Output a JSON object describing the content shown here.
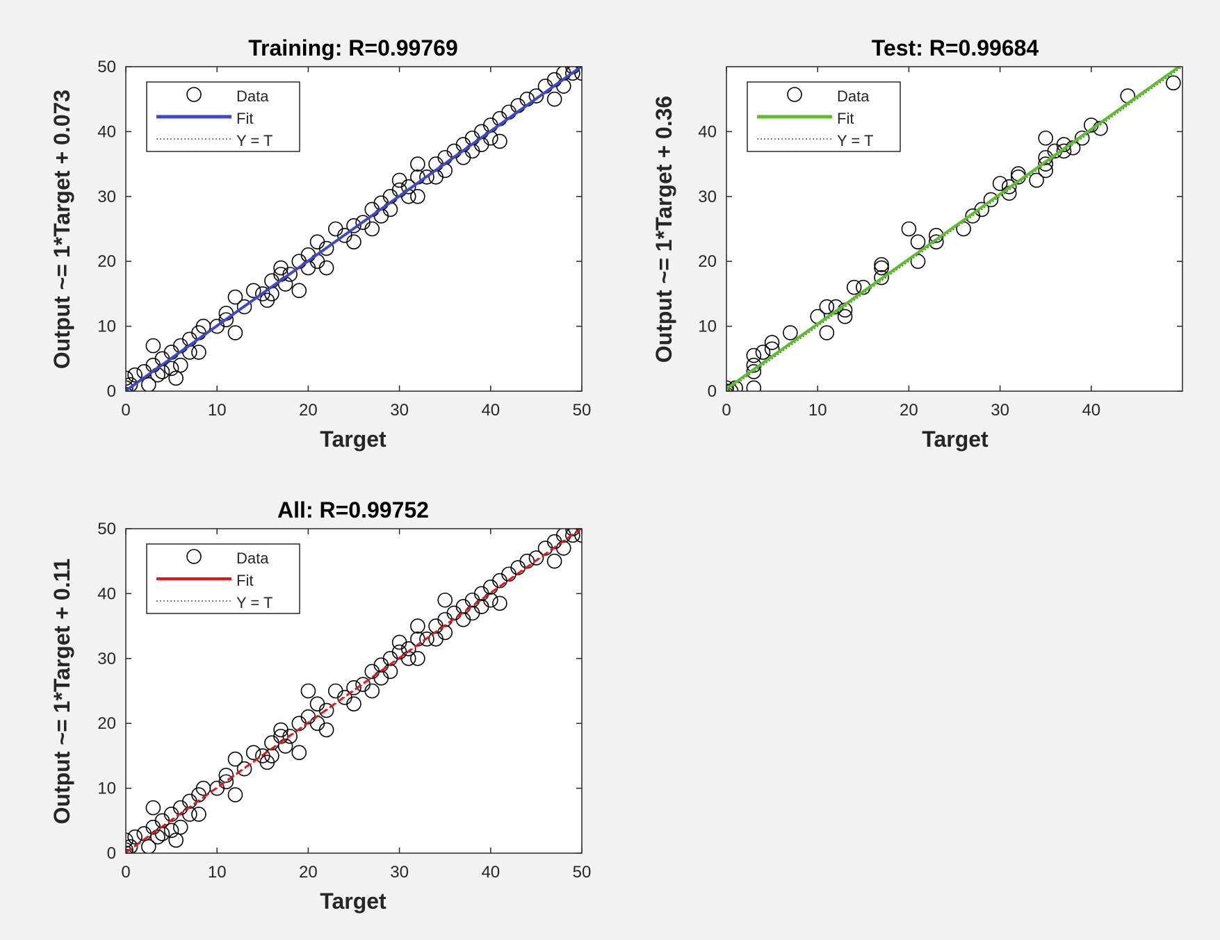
{
  "chart_data": [
    {
      "type": "scatter",
      "id": "training",
      "title": "Training: R=0.99769",
      "xlabel": "Target",
      "ylabel": "Output ~= 1*Target + 0.073",
      "xlim": [
        0,
        50
      ],
      "ylim": [
        0,
        50
      ],
      "xticks": [
        0,
        10,
        20,
        30,
        40,
        50
      ],
      "yticks": [
        0,
        10,
        20,
        30,
        40,
        50
      ],
      "fit": {
        "slope": 1,
        "intercept": 0.073,
        "color": "#3f48cc"
      },
      "legend": {
        "data": "Data",
        "fit": "Fit",
        "identity": "Y = T"
      },
      "series": [
        {
          "name": "Data",
          "points": [
            [
              0,
              -0.5
            ],
            [
              0,
              0.5
            ],
            [
              0,
              2
            ],
            [
              0.5,
              1
            ],
            [
              1,
              2.5
            ],
            [
              2,
              3
            ],
            [
              2.5,
              1
            ],
            [
              3,
              4
            ],
            [
              3,
              7
            ],
            [
              3.5,
              2.5
            ],
            [
              4,
              5
            ],
            [
              4,
              3
            ],
            [
              5,
              6
            ],
            [
              5,
              3.5
            ],
            [
              5.5,
              2
            ],
            [
              6,
              7
            ],
            [
              6,
              4
            ],
            [
              7,
              8
            ],
            [
              7,
              6
            ],
            [
              8,
              9
            ],
            [
              8,
              6
            ],
            [
              8.5,
              10
            ],
            [
              10,
              10
            ],
            [
              11,
              12
            ],
            [
              11,
              11
            ],
            [
              12,
              14.5
            ],
            [
              12,
              9
            ],
            [
              13,
              13
            ],
            [
              14,
              15.5
            ],
            [
              15,
              15
            ],
            [
              15.5,
              14
            ],
            [
              16,
              17
            ],
            [
              16,
              15
            ],
            [
              17,
              18
            ],
            [
              17,
              19
            ],
            [
              17.5,
              16.5
            ],
            [
              18,
              18
            ],
            [
              19,
              20
            ],
            [
              19,
              15.5
            ],
            [
              20,
              21
            ],
            [
              20,
              19
            ],
            [
              21,
              23
            ],
            [
              21,
              20
            ],
            [
              22,
              22
            ],
            [
              22,
              19
            ],
            [
              23,
              25
            ],
            [
              24,
              24
            ],
            [
              25,
              25.5
            ],
            [
              25,
              23
            ],
            [
              26,
              26
            ],
            [
              27,
              28
            ],
            [
              27,
              25
            ],
            [
              28,
              29
            ],
            [
              28,
              27
            ],
            [
              29,
              30
            ],
            [
              29,
              28
            ],
            [
              30,
              31
            ],
            [
              30,
              32.5
            ],
            [
              31,
              30
            ],
            [
              31,
              31.5
            ],
            [
              32,
              33
            ],
            [
              32,
              35
            ],
            [
              32,
              30
            ],
            [
              33,
              33
            ],
            [
              34,
              35
            ],
            [
              34,
              33
            ],
            [
              35,
              36
            ],
            [
              35,
              34
            ],
            [
              36,
              37
            ],
            [
              37,
              38
            ],
            [
              37,
              36
            ],
            [
              38,
              39
            ],
            [
              38,
              37
            ],
            [
              39,
              40
            ],
            [
              39,
              38
            ],
            [
              40,
              41
            ],
            [
              40,
              39
            ],
            [
              41,
              42
            ],
            [
              41,
              38.5
            ],
            [
              42,
              43
            ],
            [
              43,
              44
            ],
            [
              44,
              45
            ],
            [
              45,
              45.5
            ],
            [
              46,
              47
            ],
            [
              47,
              48
            ],
            [
              47,
              45
            ],
            [
              48,
              49
            ],
            [
              48,
              47
            ],
            [
              49,
              49
            ],
            [
              49,
              50
            ],
            [
              50,
              49
            ]
          ]
        }
      ]
    },
    {
      "type": "scatter",
      "id": "test",
      "title": "Test: R=0.99684",
      "xlabel": "Target",
      "ylabel": "Output ~= 1*Target + 0.36",
      "xlim": [
        0,
        50
      ],
      "ylim": [
        0,
        50
      ],
      "xticks": [
        0,
        10,
        20,
        30,
        40
      ],
      "yticks": [
        0,
        10,
        20,
        30,
        40
      ],
      "fit": {
        "slope": 1,
        "intercept": 0.36,
        "color": "#5cbf2a"
      },
      "legend": {
        "data": "Data",
        "fit": "Fit",
        "identity": "Y = T"
      },
      "series": [
        {
          "name": "Data",
          "points": [
            [
              0,
              0
            ],
            [
              0,
              -0.5
            ],
            [
              0,
              0.5
            ],
            [
              0.5,
              0
            ],
            [
              1,
              0.5
            ],
            [
              3,
              0.5
            ],
            [
              3,
              3
            ],
            [
              3,
              4
            ],
            [
              3,
              5.5
            ],
            [
              4,
              6
            ],
            [
              5,
              6.5
            ],
            [
              5,
              7.5
            ],
            [
              7,
              9
            ],
            [
              10,
              11.5
            ],
            [
              11,
              9
            ],
            [
              11,
              13
            ],
            [
              12,
              13
            ],
            [
              13,
              11.5
            ],
            [
              13,
              12.5
            ],
            [
              14,
              16
            ],
            [
              15,
              16
            ],
            [
              17,
              17.5
            ],
            [
              17,
              19
            ],
            [
              17,
              19.5
            ],
            [
              20,
              25
            ],
            [
              21,
              20
            ],
            [
              21,
              23
            ],
            [
              23,
              23
            ],
            [
              23,
              24
            ],
            [
              26,
              25
            ],
            [
              27,
              27
            ],
            [
              28,
              28
            ],
            [
              29,
              29.5
            ],
            [
              30,
              32
            ],
            [
              31,
              30.5
            ],
            [
              31,
              31.5
            ],
            [
              32,
              33
            ],
            [
              32,
              33.5
            ],
            [
              34,
              32.5
            ],
            [
              35,
              34
            ],
            [
              35,
              35
            ],
            [
              35,
              36
            ],
            [
              35,
              39
            ],
            [
              36,
              37
            ],
            [
              37,
              37
            ],
            [
              37,
              38
            ],
            [
              38,
              37.5
            ],
            [
              39,
              39
            ],
            [
              40,
              41
            ],
            [
              41,
              40.5
            ],
            [
              44,
              45.5
            ],
            [
              49,
              47.5
            ]
          ]
        }
      ]
    },
    {
      "type": "scatter",
      "id": "all",
      "title": "All: R=0.99752",
      "xlabel": "Target",
      "ylabel": "Output ~= 1*Target + 0.11",
      "xlim": [
        0,
        50
      ],
      "ylim": [
        0,
        50
      ],
      "xticks": [
        0,
        10,
        20,
        30,
        40,
        50
      ],
      "yticks": [
        0,
        10,
        20,
        30,
        40,
        50
      ],
      "fit": {
        "slope": 1,
        "intercept": 0.11,
        "color": "#e8141b"
      },
      "legend": {
        "data": "Data",
        "fit": "Fit",
        "identity": "Y = T"
      },
      "series": [
        {
          "name": "Data",
          "points": [
            [
              0,
              -0.5
            ],
            [
              0,
              0
            ],
            [
              0,
              0.5
            ],
            [
              0,
              2
            ],
            [
              0.5,
              1
            ],
            [
              1,
              2.5
            ],
            [
              2,
              3
            ],
            [
              2.5,
              1
            ],
            [
              3,
              4
            ],
            [
              3,
              7
            ],
            [
              3.5,
              2.5
            ],
            [
              4,
              5
            ],
            [
              4,
              3
            ],
            [
              5,
              6
            ],
            [
              5,
              3.5
            ],
            [
              5.5,
              2
            ],
            [
              6,
              7
            ],
            [
              6,
              4
            ],
            [
              7,
              8
            ],
            [
              7,
              6
            ],
            [
              8,
              9
            ],
            [
              8,
              6
            ],
            [
              8.5,
              10
            ],
            [
              10,
              10
            ],
            [
              11,
              12
            ],
            [
              11,
              11
            ],
            [
              12,
              14.5
            ],
            [
              12,
              9
            ],
            [
              13,
              13
            ],
            [
              14,
              15.5
            ],
            [
              15,
              15
            ],
            [
              15.5,
              14
            ],
            [
              16,
              17
            ],
            [
              16,
              15
            ],
            [
              17,
              18
            ],
            [
              17,
              19
            ],
            [
              17.5,
              16.5
            ],
            [
              18,
              18
            ],
            [
              19,
              20
            ],
            [
              19,
              15.5
            ],
            [
              20,
              21
            ],
            [
              20,
              25
            ],
            [
              21,
              23
            ],
            [
              21,
              20
            ],
            [
              22,
              22
            ],
            [
              22,
              19
            ],
            [
              23,
              25
            ],
            [
              24,
              24
            ],
            [
              25,
              25.5
            ],
            [
              25,
              23
            ],
            [
              26,
              26
            ],
            [
              27,
              28
            ],
            [
              27,
              25
            ],
            [
              28,
              29
            ],
            [
              28,
              27
            ],
            [
              29,
              30
            ],
            [
              29,
              28
            ],
            [
              30,
              31
            ],
            [
              30,
              32.5
            ],
            [
              31,
              30
            ],
            [
              31,
              31.5
            ],
            [
              32,
              33
            ],
            [
              32,
              35
            ],
            [
              32,
              30
            ],
            [
              33,
              33
            ],
            [
              34,
              35
            ],
            [
              34,
              33
            ],
            [
              35,
              36
            ],
            [
              35,
              34
            ],
            [
              35,
              39
            ],
            [
              36,
              37
            ],
            [
              37,
              38
            ],
            [
              37,
              36
            ],
            [
              38,
              39
            ],
            [
              38,
              37
            ],
            [
              39,
              40
            ],
            [
              39,
              38
            ],
            [
              40,
              41
            ],
            [
              40,
              39
            ],
            [
              41,
              42
            ],
            [
              41,
              38.5
            ],
            [
              42,
              43
            ],
            [
              43,
              44
            ],
            [
              44,
              45
            ],
            [
              45,
              45.5
            ],
            [
              46,
              47
            ],
            [
              47,
              48
            ],
            [
              47,
              45
            ],
            [
              48,
              49
            ],
            [
              48,
              47
            ],
            [
              49,
              49
            ],
            [
              49,
              50
            ],
            [
              50,
              49
            ]
          ]
        }
      ]
    }
  ]
}
